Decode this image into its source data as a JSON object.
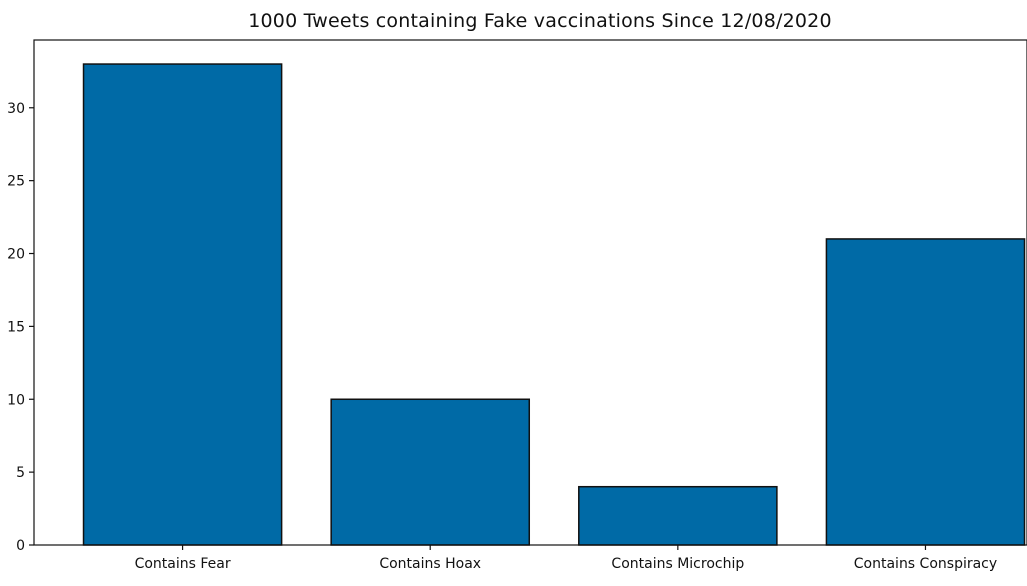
{
  "chart_data": {
    "type": "bar",
    "title": "1000 Tweets containing Fake vaccinations Since 12/08/2020",
    "xlabel": "",
    "ylabel": "",
    "categories": [
      "Contains Fear",
      "Contains Hoax",
      "Contains Microchip",
      "Contains Conspiracy"
    ],
    "values": [
      33,
      10,
      4,
      21
    ],
    "ylim": [
      0,
      34.65
    ],
    "yticks": [
      0,
      5,
      10,
      15,
      20,
      25,
      30
    ],
    "bar_color": "#006aa6",
    "edge_color": "#111111",
    "grid": false,
    "legend": "none"
  }
}
